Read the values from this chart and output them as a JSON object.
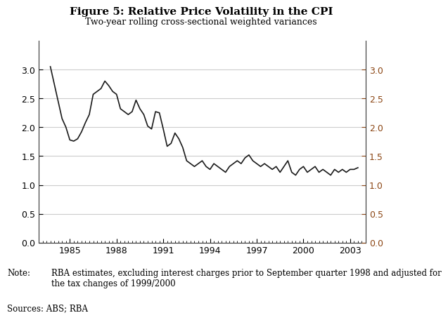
{
  "title": "Figure 5: Relative Price Volatility in the CPI",
  "subtitle": "Two-year rolling cross-sectional weighted variances",
  "note_label": "Note:",
  "note_text": "RBA estimates, excluding interest charges prior to September quarter 1998 and adjusted for\nthe tax changes of 1999/2000",
  "sources": "Sources: ABS; RBA",
  "xlim": [
    1983.5,
    2004.0
  ],
  "ylim": [
    0.0,
    3.5
  ],
  "yticks": [
    0.0,
    0.5,
    1.0,
    1.5,
    2.0,
    2.5,
    3.0
  ],
  "xticks": [
    1985,
    1988,
    1991,
    1994,
    1997,
    2000,
    2003
  ],
  "line_color": "#1a1a1a",
  "background_color": "#ffffff",
  "grid_color": "#cccccc",
  "right_axis_color": "#8B4513",
  "data": {
    "x": [
      1983.75,
      1984.0,
      1984.25,
      1984.5,
      1984.75,
      1985.0,
      1985.25,
      1985.5,
      1985.75,
      1986.0,
      1986.25,
      1986.5,
      1986.75,
      1987.0,
      1987.25,
      1987.5,
      1987.75,
      1988.0,
      1988.25,
      1988.5,
      1988.75,
      1989.0,
      1989.25,
      1989.5,
      1989.75,
      1990.0,
      1990.25,
      1990.5,
      1990.75,
      1991.0,
      1991.25,
      1991.5,
      1991.75,
      1992.0,
      1992.25,
      1992.5,
      1992.75,
      1993.0,
      1993.25,
      1993.5,
      1993.75,
      1994.0,
      1994.25,
      1994.5,
      1994.75,
      1995.0,
      1995.25,
      1995.5,
      1995.75,
      1996.0,
      1996.25,
      1996.5,
      1996.75,
      1997.0,
      1997.25,
      1997.5,
      1997.75,
      1998.0,
      1998.25,
      1998.5,
      1998.75,
      1999.0,
      1999.25,
      1999.5,
      1999.75,
      2000.0,
      2000.25,
      2000.5,
      2000.75,
      2001.0,
      2001.25,
      2001.5,
      2001.75,
      2002.0,
      2002.25,
      2002.5,
      2002.75,
      2003.0,
      2003.25,
      2003.5
    ],
    "y": [
      3.05,
      2.75,
      2.45,
      2.15,
      2.0,
      1.78,
      1.76,
      1.8,
      1.92,
      2.08,
      2.22,
      2.57,
      2.62,
      2.67,
      2.8,
      2.72,
      2.62,
      2.57,
      2.32,
      2.27,
      2.22,
      2.27,
      2.47,
      2.32,
      2.22,
      2.02,
      1.97,
      2.27,
      2.25,
      1.97,
      1.67,
      1.72,
      1.9,
      1.8,
      1.65,
      1.42,
      1.37,
      1.32,
      1.37,
      1.42,
      1.32,
      1.27,
      1.37,
      1.32,
      1.27,
      1.22,
      1.32,
      1.37,
      1.42,
      1.37,
      1.47,
      1.52,
      1.42,
      1.37,
      1.32,
      1.37,
      1.32,
      1.27,
      1.32,
      1.22,
      1.32,
      1.42,
      1.22,
      1.17,
      1.27,
      1.32,
      1.22,
      1.27,
      1.32,
      1.22,
      1.27,
      1.22,
      1.17,
      1.27,
      1.22,
      1.27,
      1.22,
      1.27,
      1.27,
      1.3
    ]
  }
}
